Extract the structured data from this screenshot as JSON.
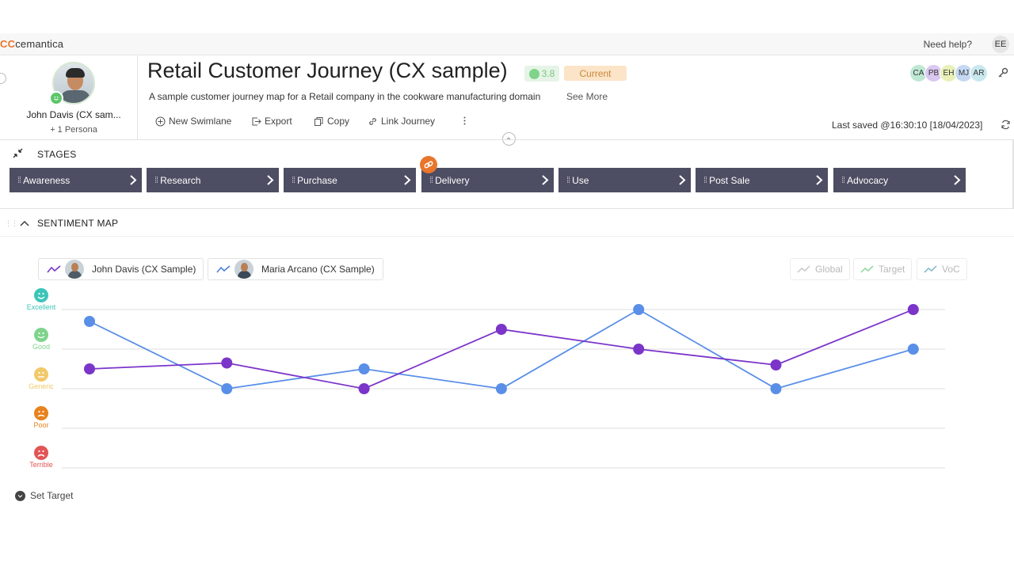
{
  "app": {
    "logo_mark": "CC",
    "logo_text": "cemantica",
    "help": "Need help?",
    "user_initials": "EE"
  },
  "persona": {
    "name": "John Davis (CX sam...",
    "extra": "+ 1 Persona"
  },
  "journey": {
    "title": "Retail Customer Journey (CX sample)",
    "score": "3.8",
    "status": "Current",
    "description": "A sample customer journey map for a Retail company in the cookware manufacturing domain",
    "see_more": "See More",
    "last_saved": "Last saved @16:30:10 [18/04/2023]"
  },
  "collaborators": [
    {
      "initials": "CA",
      "color": "#bfe8d4"
    },
    {
      "initials": "PB",
      "color": "#d9c8f0"
    },
    {
      "initials": "EH",
      "color": "#e8f0b8"
    },
    {
      "initials": "MJ",
      "color": "#c4d8f2"
    },
    {
      "initials": "AR",
      "color": "#c9e8ee"
    }
  ],
  "toolbar": {
    "new_swimlane": "New Swimlane",
    "export": "Export",
    "copy": "Copy",
    "link_journey": "Link Journey"
  },
  "stages": {
    "title": "STAGES",
    "items": [
      "Awareness",
      "Research",
      "Purchase",
      "Delivery",
      "Use",
      "Post Sale",
      "Advocacy"
    ]
  },
  "sentiment": {
    "title": "SENTIMENT MAP",
    "personas": [
      {
        "name": "John Davis (CX Sample)",
        "color": "#7b35c9"
      },
      {
        "name": "Maria Arcano (CX Sample)",
        "color": "#4e82d6"
      }
    ],
    "filters": [
      "Global",
      "Target",
      "VoC"
    ],
    "levels": [
      {
        "label": "Excellent",
        "color": "#3cc5b8"
      },
      {
        "label": "Good",
        "color": "#7fd38b"
      },
      {
        "label": "Generic",
        "color": "#f1c96a"
      },
      {
        "label": "Poor",
        "color": "#e8821f"
      },
      {
        "label": "Terrible",
        "color": "#e25555"
      }
    ],
    "set_target": "Set Target"
  },
  "chart_data": {
    "type": "line",
    "categories": [
      "Awareness",
      "Research",
      "Purchase",
      "Delivery",
      "Use",
      "Post Sale",
      "Advocacy"
    ],
    "y_levels": [
      "Terrible",
      "Poor",
      "Generic",
      "Good",
      "Excellent"
    ],
    "ylim": [
      1,
      5
    ],
    "grid": true,
    "series": [
      {
        "name": "John Davis (CX Sample)",
        "color": "#7b35c9",
        "values": [
          3.5,
          3.65,
          3,
          4.5,
          4,
          3.6,
          5
        ]
      },
      {
        "name": "Maria Arcano (CX Sample)",
        "color": "#5a8fe8",
        "values": [
          4.7,
          3,
          3.5,
          3,
          5,
          3,
          4
        ]
      }
    ]
  }
}
